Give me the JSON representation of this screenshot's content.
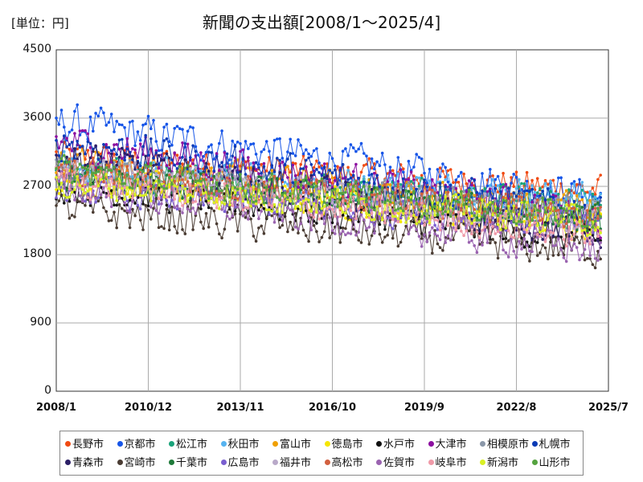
{
  "unit_label": "[単位：円]",
  "chart_data": {
    "type": "line",
    "title": "新聞の支出額[2008/1～2025/4]",
    "xlabel": "",
    "ylabel": "",
    "ylim": [
      0,
      4500
    ],
    "y_ticks": [
      0,
      900,
      1800,
      2700,
      3600,
      4500
    ],
    "x_ticks": [
      "2008/1",
      "2010/12",
      "2013/11",
      "2016/10",
      "2019/9",
      "2022/8",
      "2025/7"
    ],
    "x_range": [
      "2008/1",
      "2025/7"
    ],
    "grid": true,
    "legend_position": "bottom",
    "series": [
      {
        "name": "長野市",
        "color": "#f04a12",
        "start": 3100,
        "end": 2650,
        "amplitude": 260
      },
      {
        "name": "京都市",
        "color": "#1655e8",
        "start": 3550,
        "end": 2550,
        "amplitude": 320
      },
      {
        "name": "松江市",
        "color": "#1aa37a",
        "start": 2900,
        "end": 2450,
        "amplitude": 260
      },
      {
        "name": "秋田市",
        "color": "#56b3f0",
        "start": 2950,
        "end": 2550,
        "amplitude": 280
      },
      {
        "name": "富山市",
        "color": "#f0a000",
        "start": 3000,
        "end": 2400,
        "amplitude": 280
      },
      {
        "name": "徳島市",
        "color": "#f5e600",
        "start": 2800,
        "end": 2200,
        "amplitude": 260
      },
      {
        "name": "水戸市",
        "color": "#111111",
        "start": 2700,
        "end": 2000,
        "amplitude": 260
      },
      {
        "name": "大津市",
        "color": "#8c0fa0",
        "start": 3300,
        "end": 2300,
        "amplitude": 320
      },
      {
        "name": "相模原市",
        "color": "#8a97a8",
        "start": 2900,
        "end": 2350,
        "amplitude": 260
      },
      {
        "name": "札幌市",
        "color": "#0b3bb5",
        "start": 3300,
        "end": 2350,
        "amplitude": 300
      },
      {
        "name": "青森市",
        "color": "#2b1f66",
        "start": 3100,
        "end": 2100,
        "amplitude": 280
      },
      {
        "name": "宮崎市",
        "color": "#4a3c33",
        "start": 2400,
        "end": 1850,
        "amplitude": 300
      },
      {
        "name": "千葉市",
        "color": "#1f7a3a",
        "start": 2850,
        "end": 2250,
        "amplitude": 260
      },
      {
        "name": "広島市",
        "color": "#7a5fd0",
        "start": 2650,
        "end": 2200,
        "amplitude": 260
      },
      {
        "name": "福井市",
        "color": "#b9a9c9",
        "start": 2950,
        "end": 2250,
        "amplitude": 260
      },
      {
        "name": "高松市",
        "color": "#d2603f",
        "start": 2900,
        "end": 2300,
        "amplitude": 260
      },
      {
        "name": "佐賀市",
        "color": "#9a63b0",
        "start": 2700,
        "end": 1850,
        "amplitude": 280
      },
      {
        "name": "岐阜市",
        "color": "#f09aa8",
        "start": 2800,
        "end": 2050,
        "amplitude": 260
      },
      {
        "name": "新潟市",
        "color": "#d9f025",
        "start": 2750,
        "end": 2250,
        "amplitude": 260
      },
      {
        "name": "山形市",
        "color": "#55a33f",
        "start": 2900,
        "end": 2300,
        "amplitude": 260
      }
    ]
  }
}
